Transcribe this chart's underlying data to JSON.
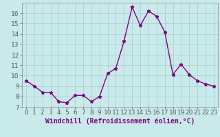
{
  "x": [
    0,
    1,
    2,
    3,
    4,
    5,
    6,
    7,
    8,
    9,
    10,
    11,
    12,
    13,
    14,
    15,
    16,
    17,
    18,
    19,
    20,
    21,
    22,
    23
  ],
  "y": [
    9.5,
    9.0,
    8.4,
    8.4,
    7.5,
    7.4,
    8.1,
    8.1,
    7.5,
    8.0,
    10.2,
    10.7,
    13.3,
    16.6,
    14.8,
    16.2,
    15.7,
    14.2,
    10.1,
    11.1,
    10.1,
    9.5,
    9.2,
    9.0
  ],
  "line_color": "#800080",
  "marker": "*",
  "marker_size": 3.5,
  "bg_color": "#c8eaea",
  "grid_color": "#b0d0d0",
  "xlabel": "Windchill (Refroidissement éolien,°C)",
  "xlabel_fontsize": 7,
  "tick_fontsize": 6.5,
  "ylim": [
    7,
    17
  ],
  "yticks": [
    7,
    8,
    9,
    10,
    11,
    12,
    13,
    14,
    15,
    16
  ],
  "xlim": [
    -0.5,
    23.5
  ],
  "xticks": [
    0,
    1,
    2,
    3,
    4,
    5,
    6,
    7,
    8,
    9,
    10,
    11,
    12,
    13,
    14,
    15,
    16,
    17,
    18,
    19,
    20,
    21,
    22,
    23
  ]
}
